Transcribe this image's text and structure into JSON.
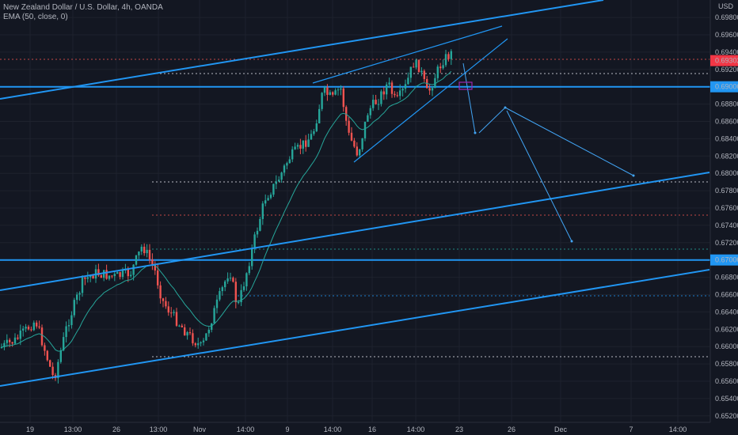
{
  "header": {
    "title": "New Zealand Dollar / U.S. Dollar, 4h, OANDA",
    "indicator": "EMA (50, close, 0)"
  },
  "currency_label": "USD",
  "chart_data": {
    "type": "candlestick",
    "symbol": "NZDUSD",
    "timeframe": "4h",
    "ylim": [
      0.6518,
      0.6988
    ],
    "y_ticks": [
      "0.69800",
      "0.69600",
      "0.69400",
      "0.69200",
      "0.68800",
      "0.68600",
      "0.68400",
      "0.68200",
      "0.68000",
      "0.67800",
      "0.67600",
      "0.67400",
      "0.67200",
      "0.66800",
      "0.66600",
      "0.66400",
      "0.66200",
      "0.66000",
      "0.65800",
      "0.65600",
      "0.65400",
      "0.65200"
    ],
    "x_ticks": [
      "19",
      "13:00",
      "26",
      "13:00",
      "Nov",
      "14:00",
      "9",
      "14:00",
      "16",
      "14:00",
      "23",
      "26",
      "Dec",
      "7",
      "14:00"
    ],
    "current_price": {
      "label": "0.69302",
      "value": 0.69302,
      "color": "#f23645"
    },
    "horizontal_levels": [
      {
        "value": 0.69,
        "label": "0.69000",
        "style": "solid",
        "color": "#2196f3"
      },
      {
        "value": 0.67,
        "label": "0.67000",
        "style": "solid",
        "color": "#2196f3"
      }
    ],
    "colors": {
      "up": "#26a69a",
      "down": "#ef5350",
      "ema": "#26a69a",
      "lines": "#2196f3",
      "background": "#131722"
    }
  }
}
